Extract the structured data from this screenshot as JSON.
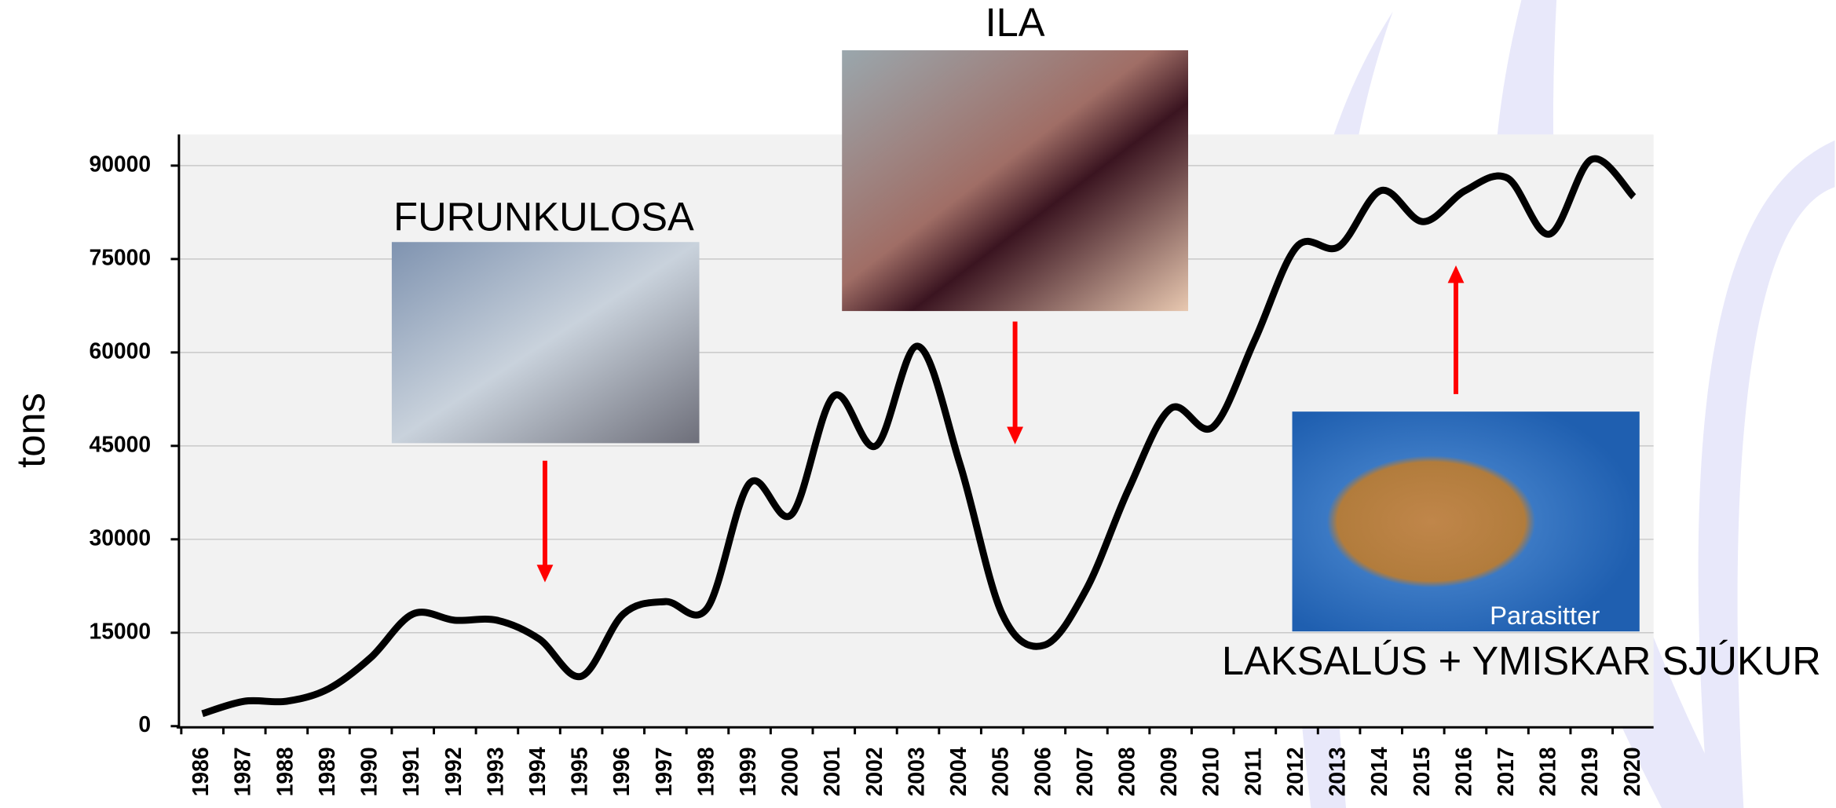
{
  "chart_data": {
    "type": "line",
    "y_label": "tons",
    "categories": [
      "1986",
      "1987",
      "1988",
      "1989",
      "1990",
      "1991",
      "1992",
      "1993",
      "1994",
      "1995",
      "1996",
      "1997",
      "1998",
      "1999",
      "2000",
      "2001",
      "2002",
      "2003",
      "2004",
      "2005",
      "2006",
      "2007",
      "2008",
      "2009",
      "2010",
      "2011",
      "2012",
      "2013",
      "2014",
      "2015",
      "2016",
      "2017",
      "2018",
      "2019",
      "2020"
    ],
    "values": [
      2000,
      4000,
      4000,
      6000,
      11000,
      18000,
      17000,
      17000,
      14000,
      8000,
      18000,
      20000,
      19000,
      39000,
      34000,
      53000,
      45000,
      61000,
      42000,
      18000,
      13000,
      22000,
      38000,
      51000,
      48000,
      62000,
      77000,
      77000,
      86000,
      81000,
      86000,
      88000,
      79000,
      91000,
      85000
    ],
    "color": "#000000",
    "ylim": [
      0,
      95000
    ],
    "yticks": [
      0,
      15000,
      30000,
      45000,
      60000,
      75000,
      90000
    ],
    "grid": true,
    "annotations": [
      "FURUNKULOSA",
      "ILA",
      "LAKSALÚS + YMISKAR SJÚKUR",
      "Parasitter"
    ]
  }
}
